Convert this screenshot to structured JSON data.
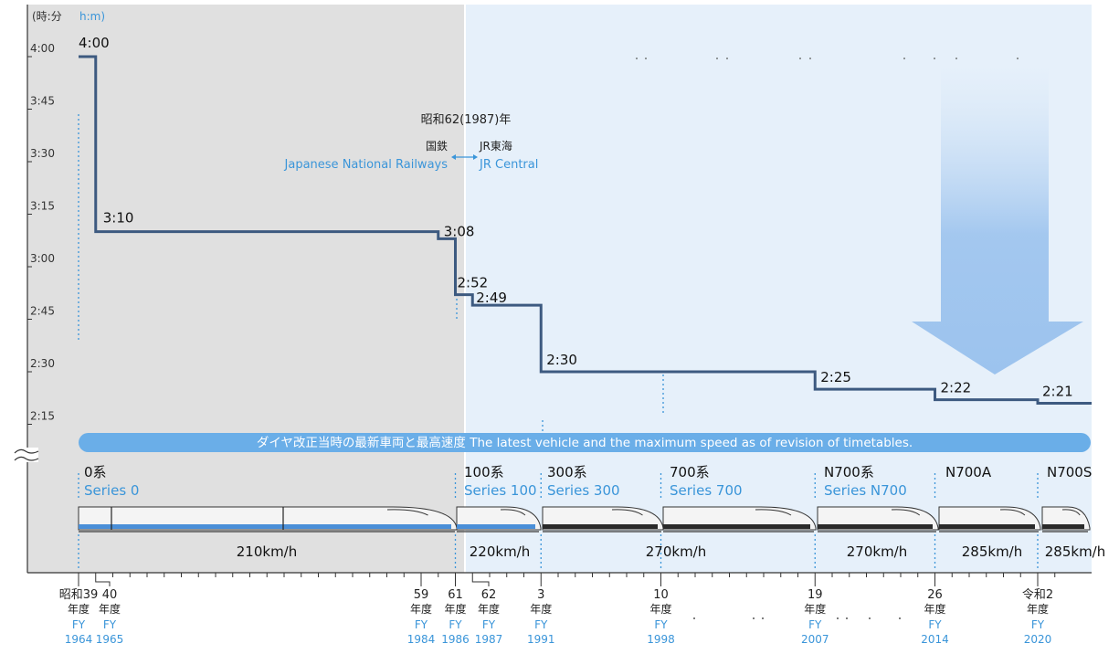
{
  "chart_data": {
    "type": "line",
    "unit_label": "(時:分",
    "unit_label_en": "h:m)",
    "y_ticks": [
      "4:00",
      "3:45",
      "3:30",
      "3:15",
      "3:00",
      "2:45",
      "2:30",
      "2:15"
    ],
    "ylim": [
      "2:10",
      "4:05"
    ],
    "points": [
      {
        "fy": 1964,
        "time": "4:00"
      },
      {
        "fy": 1965,
        "time": "3:10"
      },
      {
        "fy": 1985,
        "time": "3:08"
      },
      {
        "fy": 1986,
        "time": "2:52"
      },
      {
        "fy": 1987,
        "time": "2:49"
      },
      {
        "fy": 1991,
        "time": "2:30"
      },
      {
        "fy": 2007,
        "time": "2:25"
      },
      {
        "fy": 2014,
        "time": "2:22"
      },
      {
        "fy": 2020,
        "time": "2:21"
      }
    ],
    "era_label": "昭和62(1987)年",
    "era_from": "国鉄",
    "era_to": "JR東海",
    "era_from_en": "Japanese National Railways",
    "era_to_en": "JR Central",
    "banner": "ダイヤ改正当時の最新車両と最高速度 The latest vehicle and the maximum speed as of revision of timetables.",
    "vehicles": [
      {
        "fy": 1964,
        "name": "0系",
        "name_en": "Series 0",
        "speed": "210km/h"
      },
      {
        "fy": 1986,
        "name": "100系",
        "name_en": "Series 100",
        "speed": "220km/h"
      },
      {
        "fy": 1991,
        "name": "300系",
        "name_en": "Series 300",
        "speed": ""
      },
      {
        "fy": 1998,
        "name": "700系",
        "name_en": "Series 700",
        "speed": "270km/h"
      },
      {
        "fy": 2007,
        "name": "N700系",
        "name_en": "Series N700",
        "speed": "270km/h"
      },
      {
        "fy": 2014,
        "name": "N700A",
        "name_en": "",
        "speed": "285km/h"
      },
      {
        "fy": 2020,
        "name": "N700S",
        "name_en": "",
        "speed": "285km/h"
      }
    ],
    "x_labels": [
      {
        "fy": 1964,
        "era": "昭和39",
        "nendo": "年度",
        "fy_label": "FY",
        "year": "1964"
      },
      {
        "fy": 1965,
        "era": "40",
        "nendo": "年度",
        "fy_label": "FY",
        "year": "1965"
      },
      {
        "fy": 1984,
        "era": "59",
        "nendo": "年度",
        "fy_label": "FY",
        "year": "1984"
      },
      {
        "fy": 1986,
        "era": "61",
        "nendo": "年度",
        "fy_label": "FY",
        "year": "1986"
      },
      {
        "fy": 1987,
        "era": "62",
        "nendo": "年度",
        "fy_label": "FY",
        "year": "1987"
      },
      {
        "fy": 1991,
        "era": "3",
        "nendo": "年度",
        "fy_label": "FY",
        "year": "1991"
      },
      {
        "fy": 1998,
        "era": "10",
        "nendo": "年度",
        "fy_label": "FY",
        "year": "1998"
      },
      {
        "fy": 2007,
        "era": "19",
        "nendo": "年度",
        "fy_label": "FY",
        "year": "2007"
      },
      {
        "fy": 2014,
        "era": "26",
        "nendo": "年度",
        "fy_label": "FY",
        "year": "2014"
      },
      {
        "fy": 2020,
        "era": "令和2",
        "nendo": "年度",
        "fy_label": "FY",
        "year": "2020"
      }
    ],
    "colors": {
      "line": "#3d5a80",
      "accent": "#3a95d9",
      "jnr_bg": "#e0e0e0",
      "jr_bg": "#e6f0fa",
      "banner": "#6aaee8",
      "arrow": "#9cc3ee"
    }
  }
}
